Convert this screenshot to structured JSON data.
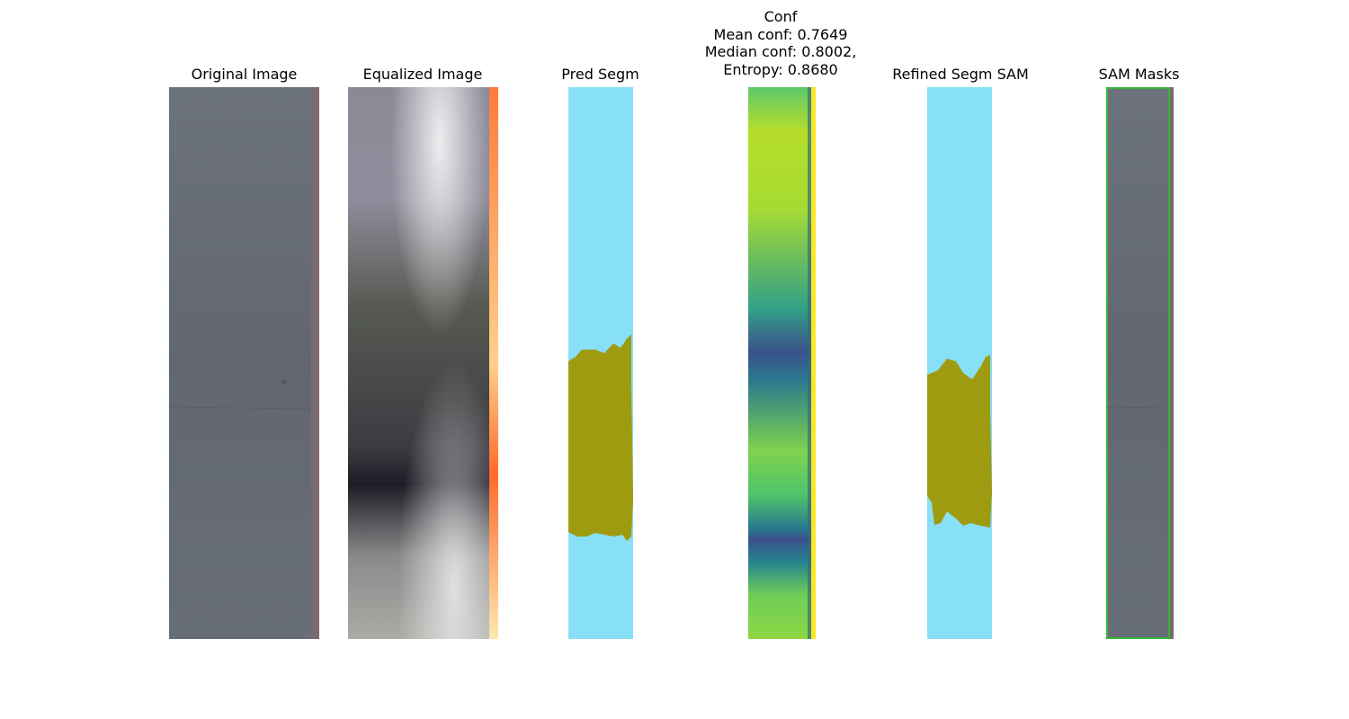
{
  "panels": {
    "original": {
      "title": "Original Image"
    },
    "equalized": {
      "title": "Equalized Image"
    },
    "pred": {
      "title": "Pred Segm"
    },
    "conf": {
      "title": "Conf",
      "mean": "Mean conf: 0.7649",
      "median": "Median conf: 0.8002,",
      "entropy": "Entropy: 0.8680"
    },
    "refined": {
      "title": "Refined Segm SAM"
    },
    "sam": {
      "title": "SAM Masks"
    }
  },
  "colors": {
    "background_class": "#87e0f5",
    "defect_class": "#9e9b10",
    "sam_outline": "#22cc22"
  }
}
